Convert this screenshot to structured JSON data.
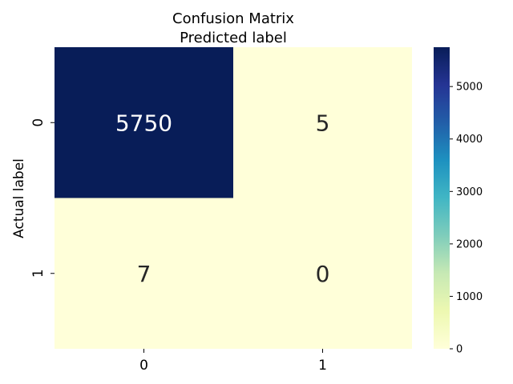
{
  "chart_data": {
    "type": "heatmap",
    "title": "Confusion Matrix",
    "subtitle": "Predicted label",
    "xlabel": "",
    "ylabel": "Actual label",
    "x_categories": [
      "0",
      "1"
    ],
    "y_categories": [
      "0",
      "1"
    ],
    "values": [
      [
        5750,
        5
      ],
      [
        7,
        0
      ]
    ],
    "colormap": "YlGnBu",
    "colorbar": {
      "min": 0,
      "max": 5750,
      "ticks": [
        0,
        1000,
        2000,
        3000,
        4000,
        5000
      ]
    },
    "colors": {
      "low": "#ffffd9",
      "high": "#081d58",
      "annotation_dark_text": "#262626",
      "annotation_light_text": "#ffffff"
    }
  }
}
